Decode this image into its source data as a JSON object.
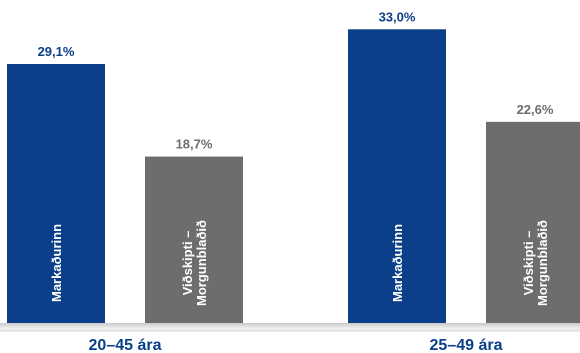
{
  "chart_data": {
    "type": "bar",
    "categories": [
      "20–45 ára",
      "25–49 ára"
    ],
    "series": [
      {
        "name": "Markaðurinn",
        "values": [
          29.1,
          33.0
        ],
        "labels": [
          "29,1%",
          "33,0%"
        ],
        "color": "#0b3f8a",
        "label_color": "#0b3f8a"
      },
      {
        "name": "Viðskipti – Morgunblaðið",
        "label_lines": [
          "Viðskipti –",
          "Morgunblaðið"
        ],
        "values": [
          18.7,
          22.6
        ],
        "labels": [
          "18,7%",
          "22,6%"
        ],
        "color": "#6d6d6d",
        "label_color": "#6d6d6d"
      }
    ],
    "group_label_color": "#0b3f8a",
    "ylim": [
      0,
      35
    ],
    "grid": false,
    "legend": "none"
  }
}
